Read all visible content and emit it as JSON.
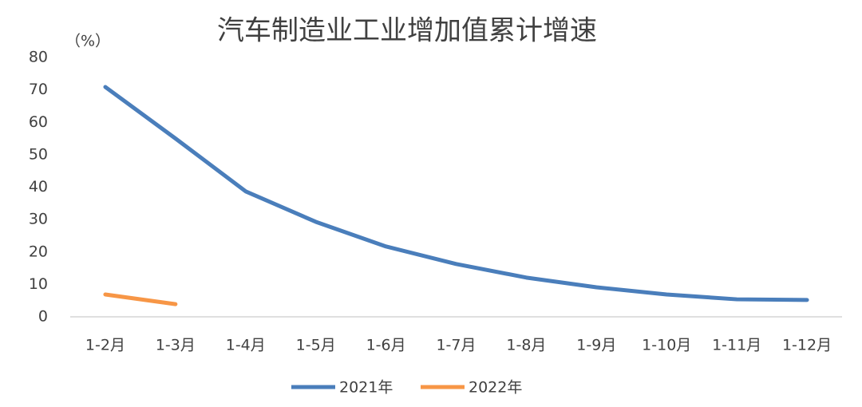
{
  "chart_data": {
    "type": "line",
    "title": "汽车制造业工业增加值累计增速",
    "y_label": "（%）",
    "categories": [
      "1-2月",
      "1-3月",
      "1-4月",
      "1-5月",
      "1-6月",
      "1-7月",
      "1-8月",
      "1-9月",
      "1-10月",
      "1-11月",
      "1-12月"
    ],
    "series": [
      {
        "name": "2021年",
        "color": "#4a7ebb",
        "values": [
          70.9,
          55,
          38.7,
          29.3,
          21.7,
          16.3,
          12.1,
          9.1,
          6.9,
          5.4,
          5.2
        ]
      },
      {
        "name": "2022年",
        "color": "#f79646",
        "values": [
          6.9,
          3.9,
          null,
          null,
          null,
          null,
          null,
          null,
          null,
          null,
          null
        ]
      }
    ],
    "ylim": [
      0,
      80
    ],
    "yticks": [
      0,
      10,
      20,
      30,
      40,
      50,
      60,
      70,
      80
    ],
    "grid": false,
    "legend": "bottom"
  }
}
